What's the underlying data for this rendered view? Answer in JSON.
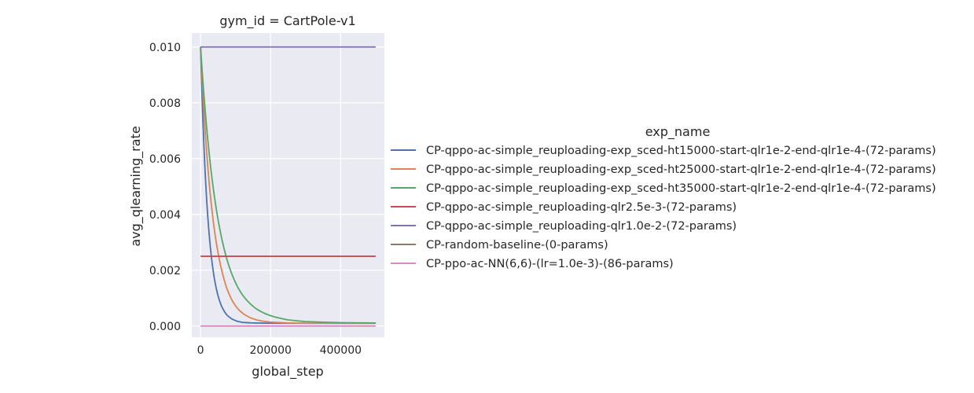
{
  "chart_data": {
    "type": "line",
    "title": "gym_id = CartPole-v1",
    "xlabel": "global_step",
    "ylabel": "avg_qlearning_rate",
    "xlim": [
      -25000,
      525000
    ],
    "ylim": [
      -0.0004,
      0.0105
    ],
    "xticks": [
      0,
      200000,
      400000
    ],
    "xtick_labels": [
      "0",
      "200000",
      "400000"
    ],
    "yticks": [
      0.0,
      0.002,
      0.004,
      0.006,
      0.008,
      0.01
    ],
    "ytick_labels": [
      "0.000",
      "0.002",
      "0.004",
      "0.006",
      "0.008",
      "0.010"
    ],
    "grid": true,
    "legend_title": "exp_name",
    "legend_position": "right",
    "series": [
      {
        "name": "CP-qppo-ac-simple_reuploading-exp_sced-ht15000-start-qlr1e-2-end-qlr1e-4-(72-params)",
        "color": "#4c72b0",
        "x": [
          0,
          5000,
          10000,
          15000,
          20000,
          25000,
          30000,
          40000,
          50000,
          60000,
          75000,
          90000,
          105000,
          120000,
          150000,
          200000,
          300000,
          400000,
          500000
        ],
        "y": [
          0.01,
          0.00796,
          0.00634,
          0.00505,
          0.00403,
          0.00322,
          0.00258,
          0.00166,
          0.00108,
          0.00071,
          0.0004,
          0.00025,
          0.00017,
          0.00013,
          0.00011,
          0.0001,
          0.0001,
          0.0001,
          0.0001
        ]
      },
      {
        "name": "CP-qppo-ac-simple_reuploading-exp_sced-ht25000-start-qlr1e-2-end-qlr1e-4-(72-params)",
        "color": "#dd8452",
        "x": [
          0,
          10000,
          20000,
          30000,
          40000,
          50000,
          60000,
          75000,
          90000,
          105000,
          120000,
          140000,
          160000,
          180000,
          200000,
          250000,
          300000,
          400000,
          500000
        ],
        "y": [
          0.01,
          0.00761,
          0.00581,
          0.00444,
          0.0034,
          0.00262,
          0.00202,
          0.00135,
          0.00092,
          0.00064,
          0.00046,
          0.00031,
          0.00022,
          0.00017,
          0.00014,
          0.00011,
          0.0001,
          0.0001,
          0.0001
        ]
      },
      {
        "name": "CP-qppo-ac-simple_reuploading-exp_sced-ht35000-start-qlr1e-2-end-qlr1e-4-(72-params)",
        "color": "#55a868",
        "x": [
          0,
          10000,
          20000,
          30000,
          40000,
          50000,
          60000,
          75000,
          90000,
          105000,
          120000,
          140000,
          160000,
          180000,
          200000,
          250000,
          300000,
          400000,
          500000
        ],
        "y": [
          0.01,
          0.00822,
          0.00676,
          0.00557,
          0.0046,
          0.00381,
          0.00316,
          0.0024,
          0.00184,
          0.00142,
          0.00111,
          0.00082,
          0.00061,
          0.00047,
          0.00037,
          0.00022,
          0.00016,
          0.00012,
          0.00011
        ]
      },
      {
        "name": "CP-qppo-ac-simple_reuploading-qlr2.5e-3-(72-params)",
        "color": "#c44e52",
        "x": [
          0,
          500000
        ],
        "y": [
          0.0025,
          0.0025
        ]
      },
      {
        "name": "CP-qppo-ac-simple_reuploading-qlr1.0e-2-(72-params)",
        "color": "#8172b3",
        "x": [
          0,
          500000
        ],
        "y": [
          0.01,
          0.01
        ]
      },
      {
        "name": "CP-random-baseline-(0-params)",
        "color": "#937860",
        "x": [],
        "y": []
      },
      {
        "name": "CP-ppo-ac-NN(6,6)-(lr=1.0e-3)-(86-params)",
        "color": "#da8bc3",
        "x": [
          0,
          500000
        ],
        "y": [
          0.0,
          0.0
        ]
      }
    ]
  }
}
